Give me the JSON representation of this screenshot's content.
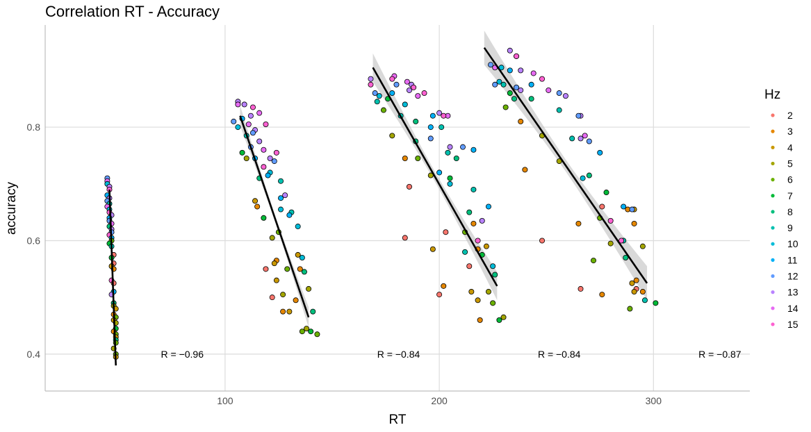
{
  "chart_data": {
    "type": "scatter",
    "title": "Correlation RT - Accuracy",
    "xlabel": "RT",
    "ylabel": "accuracy",
    "xlim": [
      16,
      345
    ],
    "ylim": [
      0.335,
      0.98
    ],
    "x_ticks": [
      100,
      200,
      300
    ],
    "y_ticks": [
      0.4,
      0.6,
      0.8
    ],
    "grid": true,
    "legend": {
      "title": "Hz",
      "position": "right",
      "entries": [
        "2",
        "3",
        "4",
        "5",
        "6",
        "7",
        "8",
        "9",
        "10",
        "11",
        "12",
        "13",
        "14",
        "15"
      ],
      "colors": [
        "#F8766D",
        "#E58700",
        "#C99800",
        "#A3A500",
        "#6BB100",
        "#00BA38",
        "#00BF7D",
        "#00C0AF",
        "#00BCD8",
        "#00B0F6",
        "#619CFF",
        "#B983FF",
        "#E76BF3",
        "#FD61D1"
      ]
    },
    "groups": [
      {
        "annotation": "R = −0.96",
        "fit_line": [
          [
            46,
            0.69
          ],
          [
            49,
            0.38
          ]
        ],
        "band_halfwidth": 0.01,
        "points": [
          [
            45,
            0.71,
            12
          ],
          [
            45,
            0.705,
            14
          ],
          [
            45,
            0.7,
            10
          ],
          [
            46,
            0.695,
            13
          ],
          [
            46,
            0.69,
            15
          ],
          [
            45,
            0.68,
            11
          ],
          [
            46,
            0.675,
            13
          ],
          [
            45,
            0.67,
            12
          ],
          [
            46,
            0.665,
            9
          ],
          [
            45,
            0.66,
            14
          ],
          [
            46,
            0.655,
            10
          ],
          [
            46,
            0.65,
            15
          ],
          [
            47,
            0.645,
            13
          ],
          [
            46,
            0.64,
            11
          ],
          [
            46,
            0.635,
            12
          ],
          [
            47,
            0.63,
            14
          ],
          [
            46,
            0.625,
            8
          ],
          [
            47,
            0.62,
            13
          ],
          [
            47,
            0.615,
            12
          ],
          [
            46,
            0.61,
            15
          ],
          [
            47,
            0.605,
            11
          ],
          [
            47,
            0.6,
            6
          ],
          [
            46,
            0.595,
            7
          ],
          [
            47,
            0.59,
            9
          ],
          [
            48,
            0.575,
            2
          ],
          [
            47,
            0.57,
            7
          ],
          [
            48,
            0.56,
            2
          ],
          [
            47,
            0.555,
            4
          ],
          [
            48,
            0.55,
            3
          ],
          [
            47,
            0.53,
            15
          ],
          [
            48,
            0.525,
            2
          ],
          [
            48,
            0.51,
            11
          ],
          [
            47,
            0.505,
            13
          ],
          [
            48,
            0.49,
            8
          ],
          [
            48,
            0.485,
            5
          ],
          [
            49,
            0.48,
            4
          ],
          [
            48,
            0.47,
            3
          ],
          [
            49,
            0.465,
            6
          ],
          [
            48,
            0.46,
            4
          ],
          [
            49,
            0.455,
            5
          ],
          [
            49,
            0.445,
            7
          ],
          [
            48,
            0.44,
            3
          ],
          [
            49,
            0.435,
            6
          ],
          [
            49,
            0.43,
            4
          ],
          [
            49,
            0.425,
            8
          ],
          [
            49,
            0.42,
            6
          ],
          [
            48,
            0.41,
            5
          ],
          [
            49,
            0.4,
            6
          ],
          [
            49,
            0.395,
            4
          ]
        ]
      },
      {
        "annotation": "R = −0.84",
        "fit_line": [
          [
            107,
            0.82
          ],
          [
            139,
            0.465
          ]
        ],
        "band_halfwidth": 0.018,
        "points": [
          [
            106,
            0.845,
            13
          ],
          [
            106,
            0.84,
            14
          ],
          [
            109,
            0.84,
            13
          ],
          [
            113,
            0.835,
            15
          ],
          [
            116,
            0.825,
            14
          ],
          [
            112,
            0.82,
            13
          ],
          [
            108,
            0.815,
            11
          ],
          [
            104,
            0.81,
            12
          ],
          [
            111,
            0.805,
            14
          ],
          [
            119,
            0.805,
            15
          ],
          [
            106,
            0.8,
            10
          ],
          [
            114,
            0.795,
            13
          ],
          [
            113,
            0.79,
            12
          ],
          [
            110,
            0.785,
            9
          ],
          [
            116,
            0.775,
            13
          ],
          [
            112,
            0.765,
            12
          ],
          [
            118,
            0.76,
            14
          ],
          [
            108,
            0.755,
            7
          ],
          [
            124,
            0.755,
            15
          ],
          [
            110,
            0.745,
            5
          ],
          [
            114,
            0.745,
            11
          ],
          [
            121,
            0.745,
            13
          ],
          [
            123,
            0.74,
            12
          ],
          [
            118,
            0.73,
            15
          ],
          [
            121,
            0.72,
            10
          ],
          [
            120,
            0.715,
            11
          ],
          [
            116,
            0.71,
            8
          ],
          [
            126,
            0.705,
            9
          ],
          [
            128,
            0.68,
            13
          ],
          [
            126,
            0.675,
            11
          ],
          [
            114,
            0.67,
            4
          ],
          [
            115,
            0.66,
            3
          ],
          [
            126,
            0.655,
            10
          ],
          [
            131,
            0.65,
            9
          ],
          [
            130,
            0.645,
            11
          ],
          [
            118,
            0.64,
            7
          ],
          [
            134,
            0.625,
            10
          ],
          [
            125,
            0.615,
            6
          ],
          [
            122,
            0.605,
            5
          ],
          [
            134,
            0.575,
            4
          ],
          [
            136,
            0.57,
            10
          ],
          [
            124,
            0.565,
            3
          ],
          [
            123,
            0.56,
            4
          ],
          [
            135,
            0.55,
            3
          ],
          [
            129,
            0.55,
            6
          ],
          [
            119,
            0.55,
            2
          ],
          [
            137,
            0.545,
            8
          ],
          [
            124,
            0.53,
            4
          ],
          [
            139,
            0.515,
            5
          ],
          [
            127,
            0.505,
            5
          ],
          [
            122,
            0.5,
            2
          ],
          [
            133,
            0.495,
            3
          ],
          [
            127,
            0.475,
            3
          ],
          [
            130,
            0.475,
            4
          ],
          [
            141,
            0.475,
            8
          ],
          [
            138,
            0.445,
            5
          ],
          [
            136,
            0.44,
            6
          ],
          [
            140,
            0.44,
            7
          ],
          [
            143,
            0.435,
            6
          ]
        ]
      },
      {
        "annotation": "R = −0.84",
        "fit_line": [
          [
            169,
            0.905
          ],
          [
            227,
            0.52
          ]
        ],
        "band_halfwidth": 0.025,
        "points": [
          [
            168,
            0.885,
            13
          ],
          [
            168,
            0.875,
            15
          ],
          [
            170,
            0.86,
            12
          ],
          [
            172,
            0.855,
            10
          ],
          [
            179,
            0.89,
            14
          ],
          [
            178,
            0.885,
            15
          ],
          [
            180,
            0.875,
            12
          ],
          [
            187,
            0.875,
            13
          ],
          [
            185,
            0.88,
            14
          ],
          [
            188,
            0.87,
            15
          ],
          [
            186,
            0.865,
            13
          ],
          [
            178,
            0.86,
            11
          ],
          [
            190,
            0.855,
            14
          ],
          [
            193,
            0.86,
            15
          ],
          [
            171,
            0.845,
            9
          ],
          [
            176,
            0.85,
            7
          ],
          [
            184,
            0.84,
            10
          ],
          [
            174,
            0.83,
            6
          ],
          [
            182,
            0.82,
            9
          ],
          [
            189,
            0.81,
            8
          ],
          [
            197,
            0.82,
            11
          ],
          [
            200,
            0.825,
            13
          ],
          [
            204,
            0.82,
            14
          ],
          [
            202,
            0.82,
            15
          ],
          [
            196,
            0.8,
            11
          ],
          [
            201,
            0.8,
            9
          ],
          [
            196,
            0.78,
            12
          ],
          [
            189,
            0.775,
            8
          ],
          [
            178,
            0.785,
            5
          ],
          [
            205,
            0.765,
            13
          ],
          [
            211,
            0.765,
            12
          ],
          [
            216,
            0.76,
            11
          ],
          [
            204,
            0.755,
            9
          ],
          [
            184,
            0.745,
            3
          ],
          [
            190,
            0.745,
            6
          ],
          [
            208,
            0.745,
            8
          ],
          [
            200,
            0.72,
            11
          ],
          [
            205,
            0.71,
            7
          ],
          [
            196,
            0.715,
            5
          ],
          [
            205,
            0.7,
            10
          ],
          [
            216,
            0.69,
            9
          ],
          [
            186,
            0.695,
            2
          ],
          [
            223,
            0.66,
            11
          ],
          [
            214,
            0.65,
            8
          ],
          [
            220,
            0.635,
            13
          ],
          [
            216,
            0.63,
            3
          ],
          [
            212,
            0.615,
            6
          ],
          [
            203,
            0.615,
            2
          ],
          [
            218,
            0.6,
            15
          ],
          [
            222,
            0.59,
            4
          ],
          [
            184,
            0.605,
            2
          ],
          [
            218,
            0.585,
            3
          ],
          [
            212,
            0.58,
            9
          ],
          [
            220,
            0.575,
            7
          ],
          [
            225,
            0.555,
            10
          ],
          [
            214,
            0.555,
            2
          ],
          [
            226,
            0.54,
            8
          ],
          [
            197,
            0.585,
            4
          ],
          [
            202,
            0.52,
            3
          ],
          [
            200,
            0.505,
            2
          ],
          [
            215,
            0.51,
            4
          ],
          [
            223,
            0.51,
            5
          ],
          [
            218,
            0.495,
            4
          ],
          [
            225,
            0.49,
            6
          ],
          [
            230,
            0.465,
            5
          ],
          [
            228,
            0.46,
            7
          ],
          [
            219,
            0.46,
            3
          ]
        ]
      },
      {
        "annotation": "R = −0.87",
        "fit_line": [
          [
            221,
            0.94
          ],
          [
            297,
            0.525
          ]
        ],
        "band_halfwidth": 0.03,
        "points": [
          [
            233,
            0.935,
            13
          ],
          [
            236,
            0.925,
            14
          ],
          [
            236,
            0.925,
            15
          ],
          [
            224,
            0.91,
            12
          ],
          [
            226,
            0.905,
            14
          ],
          [
            229,
            0.905,
            10
          ],
          [
            233,
            0.9,
            11
          ],
          [
            238,
            0.9,
            13
          ],
          [
            244,
            0.895,
            14
          ],
          [
            248,
            0.885,
            15
          ],
          [
            228,
            0.88,
            10
          ],
          [
            226,
            0.875,
            12
          ],
          [
            230,
            0.875,
            9
          ],
          [
            236,
            0.87,
            12
          ],
          [
            243,
            0.875,
            11
          ],
          [
            238,
            0.865,
            13
          ],
          [
            251,
            0.865,
            14
          ],
          [
            256,
            0.86,
            12
          ],
          [
            259,
            0.855,
            13
          ],
          [
            233,
            0.86,
            7
          ],
          [
            235,
            0.85,
            8
          ],
          [
            243,
            0.85,
            8
          ],
          [
            231,
            0.835,
            6
          ],
          [
            256,
            0.83,
            9
          ],
          [
            266,
            0.82,
            13
          ],
          [
            265,
            0.82,
            12
          ],
          [
            238,
            0.81,
            3
          ],
          [
            262,
            0.78,
            9
          ],
          [
            268,
            0.785,
            14
          ],
          [
            266,
            0.78,
            13
          ],
          [
            248,
            0.785,
            5
          ],
          [
            256,
            0.74,
            5
          ],
          [
            270,
            0.775,
            12
          ],
          [
            275,
            0.755,
            11
          ],
          [
            270,
            0.715,
            8
          ],
          [
            278,
            0.685,
            7
          ],
          [
            267,
            0.71,
            10
          ],
          [
            240,
            0.725,
            3
          ],
          [
            286,
            0.66,
            11
          ],
          [
            288,
            0.655,
            3
          ],
          [
            291,
            0.655,
            4
          ],
          [
            290,
            0.655,
            12
          ],
          [
            276,
            0.66,
            2
          ],
          [
            291,
            0.63,
            3
          ],
          [
            265,
            0.63,
            3
          ],
          [
            275,
            0.64,
            6
          ],
          [
            280,
            0.635,
            15
          ],
          [
            286,
            0.6,
            9
          ],
          [
            285,
            0.6,
            15
          ],
          [
            280,
            0.595,
            5
          ],
          [
            295,
            0.59,
            5
          ],
          [
            287,
            0.57,
            8
          ],
          [
            272,
            0.565,
            6
          ],
          [
            248,
            0.6,
            2
          ],
          [
            292,
            0.53,
            3
          ],
          [
            290,
            0.525,
            4
          ],
          [
            292,
            0.515,
            2
          ],
          [
            295,
            0.51,
            3
          ],
          [
            291,
            0.51,
            4
          ],
          [
            296,
            0.495,
            9
          ],
          [
            301,
            0.49,
            7
          ],
          [
            289,
            0.48,
            6
          ],
          [
            266,
            0.515,
            2
          ],
          [
            276,
            0.505,
            3
          ]
        ]
      }
    ]
  }
}
